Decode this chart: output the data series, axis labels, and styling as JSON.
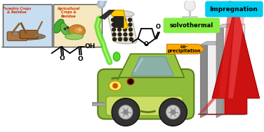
{
  "background_color": "#ffffff",
  "labels": {
    "impregnation": "Impregnation",
    "solvothermal": "solvothermal",
    "coprecipitation": "co-\nprecipitation"
  },
  "colors": {
    "impregnation_bg": "#00ccee",
    "solvothermal_bg": "#88ee44",
    "coprecipitation_bg": "#ffaa00",
    "arrow_red": "#cc1111",
    "arrow_dark": "#990000",
    "arrow_light": "#ee3333",
    "white": "#ffffff",
    "black": "#000000",
    "gray_light": "#cccccc",
    "gray_dark": "#888888",
    "yellow": "#ffcc00",
    "yellow_dark": "#cc9900",
    "car_green": "#88bb33",
    "car_dark": "#556622",
    "car_light": "#aad044",
    "pellet_bg": "#e8e0d0",
    "pellet_dot": "#2a2210",
    "nozzle_gray": "#aabbcc",
    "nozzle_dark": "#778899",
    "green_stream": "#55dd22",
    "box1_bg": "#c8ddf0",
    "box2_bg": "#f5e8c0",
    "box_border": "#555555",
    "stickfig": "#e8e8e8",
    "bar_white": "#f0f0f0",
    "bar_dark": "#999999"
  },
  "figsize": [
    3.76,
    1.89
  ],
  "dpi": 100
}
